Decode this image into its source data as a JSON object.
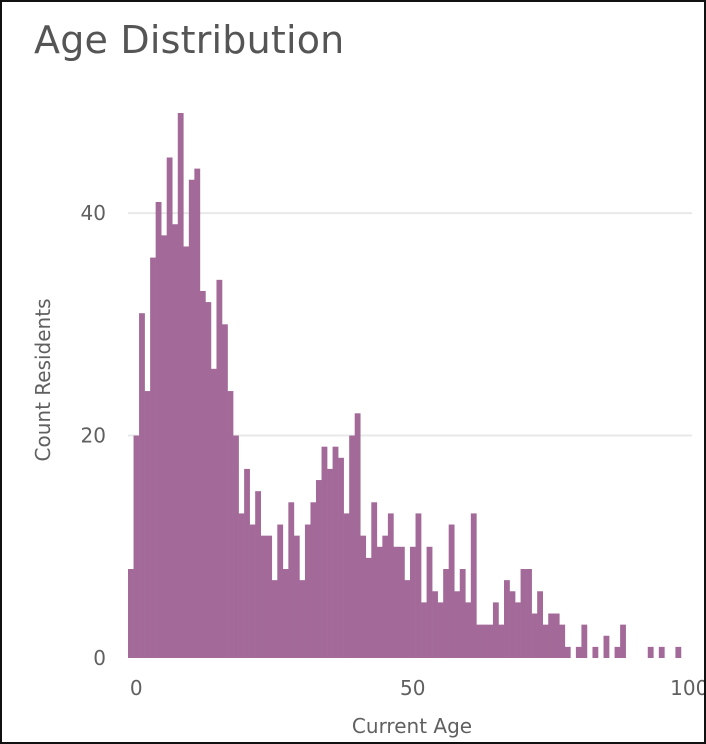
{
  "title": "Age Distribution",
  "chart_data": {
    "type": "bar",
    "title": "Age Distribution",
    "xlabel": "Current Age",
    "ylabel": "Count Residents",
    "xlim": [
      -1,
      100
    ],
    "ylim": [
      0,
      49
    ],
    "xticks": [
      0,
      50,
      100
    ],
    "yticks": [
      0,
      20,
      40
    ],
    "grid": "horizontal",
    "legend": "none",
    "bar_color": "#a36a99",
    "gridline_color": "#e8e8e8",
    "x": [
      -1,
      0,
      1,
      2,
      3,
      4,
      5,
      6,
      7,
      8,
      9,
      10,
      11,
      12,
      13,
      14,
      15,
      16,
      17,
      18,
      19,
      20,
      21,
      22,
      23,
      24,
      25,
      26,
      27,
      28,
      29,
      30,
      31,
      32,
      33,
      34,
      35,
      36,
      37,
      38,
      39,
      40,
      41,
      42,
      43,
      44,
      45,
      46,
      47,
      48,
      49,
      50,
      51,
      52,
      53,
      54,
      55,
      56,
      57,
      58,
      59,
      60,
      61,
      62,
      63,
      64,
      65,
      66,
      67,
      68,
      69,
      70,
      71,
      72,
      73,
      74,
      75,
      76,
      77,
      78,
      79,
      80,
      81,
      82,
      83,
      84,
      85,
      86,
      87,
      88,
      89,
      90,
      91,
      92,
      93,
      94,
      95,
      96,
      97,
      98,
      99
    ],
    "values": [
      8,
      20,
      31,
      24,
      36,
      41,
      38,
      45,
      39,
      49,
      37,
      43,
      44,
      33,
      32,
      26,
      34,
      30,
      24,
      20,
      13,
      17,
      12,
      15,
      11,
      11,
      7,
      12,
      8,
      14,
      11,
      7,
      12,
      14,
      16,
      19,
      17,
      19,
      18,
      13,
      20,
      22,
      11,
      9,
      14,
      10,
      11,
      13,
      10,
      10,
      7,
      10,
      13,
      5,
      10,
      6,
      5,
      8,
      12,
      6,
      8,
      5,
      13,
      3,
      3,
      3,
      5,
      3,
      7,
      6,
      5,
      8,
      8,
      4,
      6,
      3,
      4,
      4,
      3,
      1,
      0,
      1,
      3,
      0,
      1,
      0,
      2,
      0,
      1,
      3,
      0,
      0,
      0,
      0,
      1,
      0,
      1,
      0,
      0,
      1,
      0
    ]
  }
}
